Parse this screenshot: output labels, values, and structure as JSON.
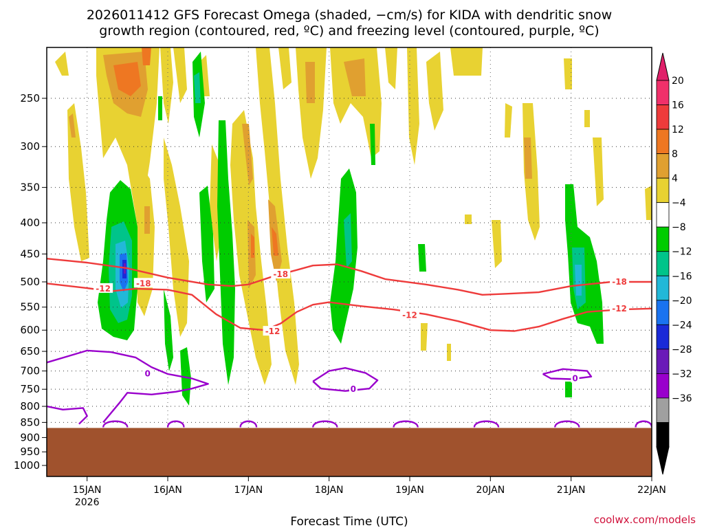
{
  "title_line1": "2026011412 GFS Forecast Omega (shaded, −cm/s) for KIDA with dendritic snow",
  "title_line2": "growth region (contoured, red, ºC) and freezing level (contoured, purple, ºC)",
  "credit": "coolwx.com/models",
  "chart_data": {
    "type": "heatmap",
    "title": "2026011412 GFS Forecast Omega (shaded, −cm/s) for KIDA with dendritic snow growth region (contoured, red, ºC) and freezing level (contoured, purple, ºC)",
    "xlabel": "Forecast Time (UTC)",
    "ylabel": "",
    "x_range_days": [
      14.5,
      22.0
    ],
    "x_ticks": [
      {
        "day": 15,
        "label": "15JAN",
        "sublabel": "2026"
      },
      {
        "day": 16,
        "label": "16JAN"
      },
      {
        "day": 17,
        "label": "17JAN"
      },
      {
        "day": 18,
        "label": "18JAN"
      },
      {
        "day": 19,
        "label": "19JAN"
      },
      {
        "day": 20,
        "label": "20JAN"
      },
      {
        "day": 21,
        "label": "21JAN"
      },
      {
        "day": 22,
        "label": "22JAN"
      }
    ],
    "y_axis": "pressure (hPa), inverted",
    "y_range": [
      1050,
      200
    ],
    "y_ticks": [
      250,
      300,
      350,
      400,
      450,
      500,
      550,
      600,
      650,
      700,
      750,
      800,
      850,
      900,
      950,
      1000
    ],
    "grid": true,
    "surface_pressure_hPa": 868,
    "colorbar": {
      "levels": [
        -36,
        -32,
        -28,
        -24,
        -20,
        -16,
        -12,
        -8,
        -4,
        4,
        8,
        12,
        16,
        20
      ],
      "labels": [
        "20",
        "16",
        "12",
        "8",
        "4",
        "−4",
        "−8",
        "−12",
        "−16",
        "−20",
        "−24",
        "−28",
        "−32",
        "−36"
      ],
      "segments_top_to_bottom": [
        "#f0306a",
        "#ee3b3b",
        "#ee7722",
        "#e0a030",
        "#e8d232",
        "#ffffff",
        "#00cc00",
        "#00c48a",
        "#22b8d8",
        "#1a73f0",
        "#1a2ad8",
        "#6a1ab8",
        "#9900cc",
        "#a0a0a0",
        "#000000"
      ],
      "max_arrow_color": "#e0206a",
      "min_arrow_color": "#000000"
    },
    "shading_colors": {
      "omega_4_8": "#e8d232",
      "omega_8_12": "#e0a030",
      "omega_12_16": "#ee7722",
      "omega_16_20": "#ee3b3b",
      "omega_m4_m8": "#00cc00",
      "omega_m8_m12": "#00c48a",
      "omega_m12_m16": "#22b8d8",
      "omega_m16_m20": "#1a73f0",
      "omega_m20_m24": "#1a2ad8",
      "omega_m24_m28": "#6a1ab8",
      "ground": "#a0522d"
    },
    "contours": [
      {
        "label": "-18",
        "color": "#ee3b3b",
        "points": [
          [
            14.5,
            458
          ],
          [
            15.0,
            465
          ],
          [
            15.5,
            475
          ],
          [
            16.0,
            492
          ],
          [
            16.5,
            505
          ],
          [
            16.8,
            508
          ],
          [
            17.0,
            505
          ],
          [
            17.3,
            490
          ],
          [
            17.6,
            478
          ],
          [
            17.8,
            470
          ],
          [
            18.1,
            468
          ],
          [
            18.4,
            480
          ],
          [
            18.7,
            495
          ],
          [
            19.2,
            505
          ],
          [
            19.6,
            515
          ],
          [
            19.9,
            525
          ],
          [
            20.2,
            523
          ],
          [
            20.6,
            520
          ],
          [
            21.0,
            508
          ],
          [
            21.5,
            500
          ],
          [
            22.0,
            500
          ]
        ],
        "label_positions": [
          [
            15.7,
            503
          ],
          [
            17.4,
            486
          ],
          [
            21.6,
            500
          ]
        ]
      },
      {
        "label": "-12",
        "color": "#ee3b3b",
        "points": [
          [
            14.5,
            503
          ],
          [
            15.0,
            512
          ],
          [
            15.3,
            518
          ],
          [
            15.6,
            513
          ],
          [
            16.0,
            515
          ],
          [
            16.3,
            525
          ],
          [
            16.6,
            565
          ],
          [
            16.9,
            595
          ],
          [
            17.2,
            600
          ],
          [
            17.4,
            585
          ],
          [
            17.6,
            560
          ],
          [
            17.8,
            545
          ],
          [
            18.0,
            540
          ],
          [
            18.4,
            548
          ],
          [
            18.8,
            555
          ],
          [
            19.2,
            565
          ],
          [
            19.6,
            580
          ],
          [
            20.0,
            600
          ],
          [
            20.3,
            602
          ],
          [
            20.6,
            592
          ],
          [
            20.9,
            575
          ],
          [
            21.2,
            560
          ],
          [
            21.6,
            555
          ],
          [
            22.0,
            553
          ]
        ],
        "label_positions": [
          [
            15.2,
            513
          ],
          [
            17.3,
            603
          ],
          [
            19.0,
            567
          ],
          [
            21.6,
            553
          ]
        ]
      },
      {
        "label": "0",
        "color": "#9900cc",
        "points": [
          [
            14.5,
            678
          ],
          [
            14.8,
            660
          ],
          [
            15.0,
            648
          ],
          [
            15.3,
            652
          ],
          [
            15.6,
            665
          ],
          [
            15.8,
            690
          ],
          [
            16.0,
            708
          ],
          [
            16.3,
            720
          ],
          [
            16.5,
            735
          ],
          [
            16.3,
            748
          ],
          [
            16.1,
            757
          ],
          [
            15.8,
            765
          ],
          [
            15.5,
            760
          ],
          [
            15.4,
            790
          ],
          [
            15.2,
            850
          ]
        ],
        "label_positions": [
          [
            15.75,
            707
          ]
        ]
      },
      {
        "label": "0",
        "color": "#9900cc",
        "points": [
          [
            17.8,
            728
          ],
          [
            18.0,
            700
          ],
          [
            18.2,
            692
          ],
          [
            18.45,
            705
          ],
          [
            18.6,
            725
          ],
          [
            18.5,
            748
          ],
          [
            18.2,
            755
          ],
          [
            17.9,
            748
          ],
          [
            17.8,
            728
          ]
        ],
        "label_positions": [
          [
            18.3,
            750
          ]
        ]
      },
      {
        "label": "0",
        "color": "#9900cc",
        "points": [
          [
            20.65,
            708
          ],
          [
            20.9,
            695
          ],
          [
            21.2,
            700
          ],
          [
            21.25,
            715
          ],
          [
            21.0,
            722
          ],
          [
            20.75,
            720
          ],
          [
            20.65,
            708
          ]
        ],
        "label_positions": [
          [
            21.05,
            720
          ]
        ]
      },
      {
        "label": "",
        "color": "#9900cc",
        "points": [
          [
            14.5,
            800
          ],
          [
            14.7,
            810
          ],
          [
            14.95,
            805
          ],
          [
            15.0,
            830
          ],
          [
            14.9,
            855
          ]
        ],
        "label_positions": []
      }
    ]
  }
}
